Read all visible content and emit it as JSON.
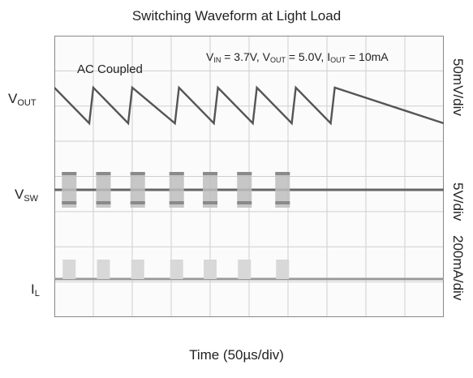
{
  "chart_data": {
    "type": "line",
    "title": "Switching Waveform at Light Load",
    "xlabel": "Time (50µs/div)",
    "annotations": {
      "coupling": "AC Coupled",
      "conditions": [
        {
          "main": "V",
          "sub": "IN",
          "rest": " = 3.7V, "
        },
        {
          "main": "V",
          "sub": "OUT",
          "rest": " = 5.0V, "
        },
        {
          "main": "I",
          "sub": "OUT",
          "rest": " = 10mA"
        }
      ]
    },
    "channels": [
      {
        "name_main": "V",
        "name_sub": "OUT",
        "scale": "50mV/div",
        "shape": "sawtooth",
        "peak_times_us": [
          0,
          50,
          100,
          160,
          210,
          260,
          310,
          360
        ],
        "amplitude_mv": 65,
        "color": "#555555"
      },
      {
        "name_main": "V",
        "name_sub": "SW",
        "scale": "5V/div",
        "shape": "burst",
        "burst_times_us": [
          19,
          63,
          107,
          157,
          200,
          244,
          293
        ],
        "color": "#666666"
      },
      {
        "name_main": "I",
        "name_sub": "L",
        "scale": "200mA/div",
        "shape": "pulse",
        "pulse_times_us": [
          19,
          63,
          107,
          157,
          200,
          244,
          293
        ],
        "color": "#9a9a9a"
      }
    ],
    "x_range_us": [
      0,
      500
    ],
    "grid": true
  },
  "colors": {
    "grid": "#cfcfcf",
    "frame": "#888888"
  }
}
